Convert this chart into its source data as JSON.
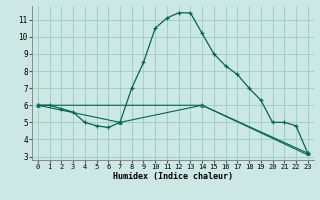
{
  "title": "",
  "xlabel": "Humidex (Indice chaleur)",
  "bg_color": "#cce8e4",
  "grid_color": "#99ccc6",
  "line_color": "#006655",
  "xlim": [
    -0.5,
    23.5
  ],
  "ylim": [
    2.8,
    11.8
  ],
  "yticks": [
    3,
    4,
    5,
    6,
    7,
    8,
    9,
    10,
    11
  ],
  "xticks": [
    0,
    1,
    2,
    3,
    4,
    5,
    6,
    7,
    8,
    9,
    10,
    11,
    12,
    13,
    14,
    15,
    16,
    17,
    18,
    19,
    20,
    21,
    22,
    23
  ],
  "series1_x": [
    0,
    1,
    2,
    3,
    4,
    5,
    6,
    7,
    8,
    9,
    10,
    11,
    12,
    13,
    14,
    15,
    16,
    17,
    18,
    19,
    20,
    21,
    22,
    23
  ],
  "series1_y": [
    6.0,
    6.0,
    5.8,
    5.6,
    5.0,
    4.8,
    4.7,
    5.0,
    7.0,
    8.5,
    10.5,
    11.1,
    11.4,
    11.4,
    10.2,
    9.0,
    8.3,
    7.8,
    7.0,
    6.3,
    5.0,
    5.0,
    4.8,
    3.2
  ],
  "series2_x": [
    0,
    7,
    14,
    23
  ],
  "series2_y": [
    6.0,
    5.0,
    6.0,
    3.2
  ],
  "series3_x": [
    0,
    14,
    23
  ],
  "series3_y": [
    6.0,
    6.0,
    3.1
  ]
}
